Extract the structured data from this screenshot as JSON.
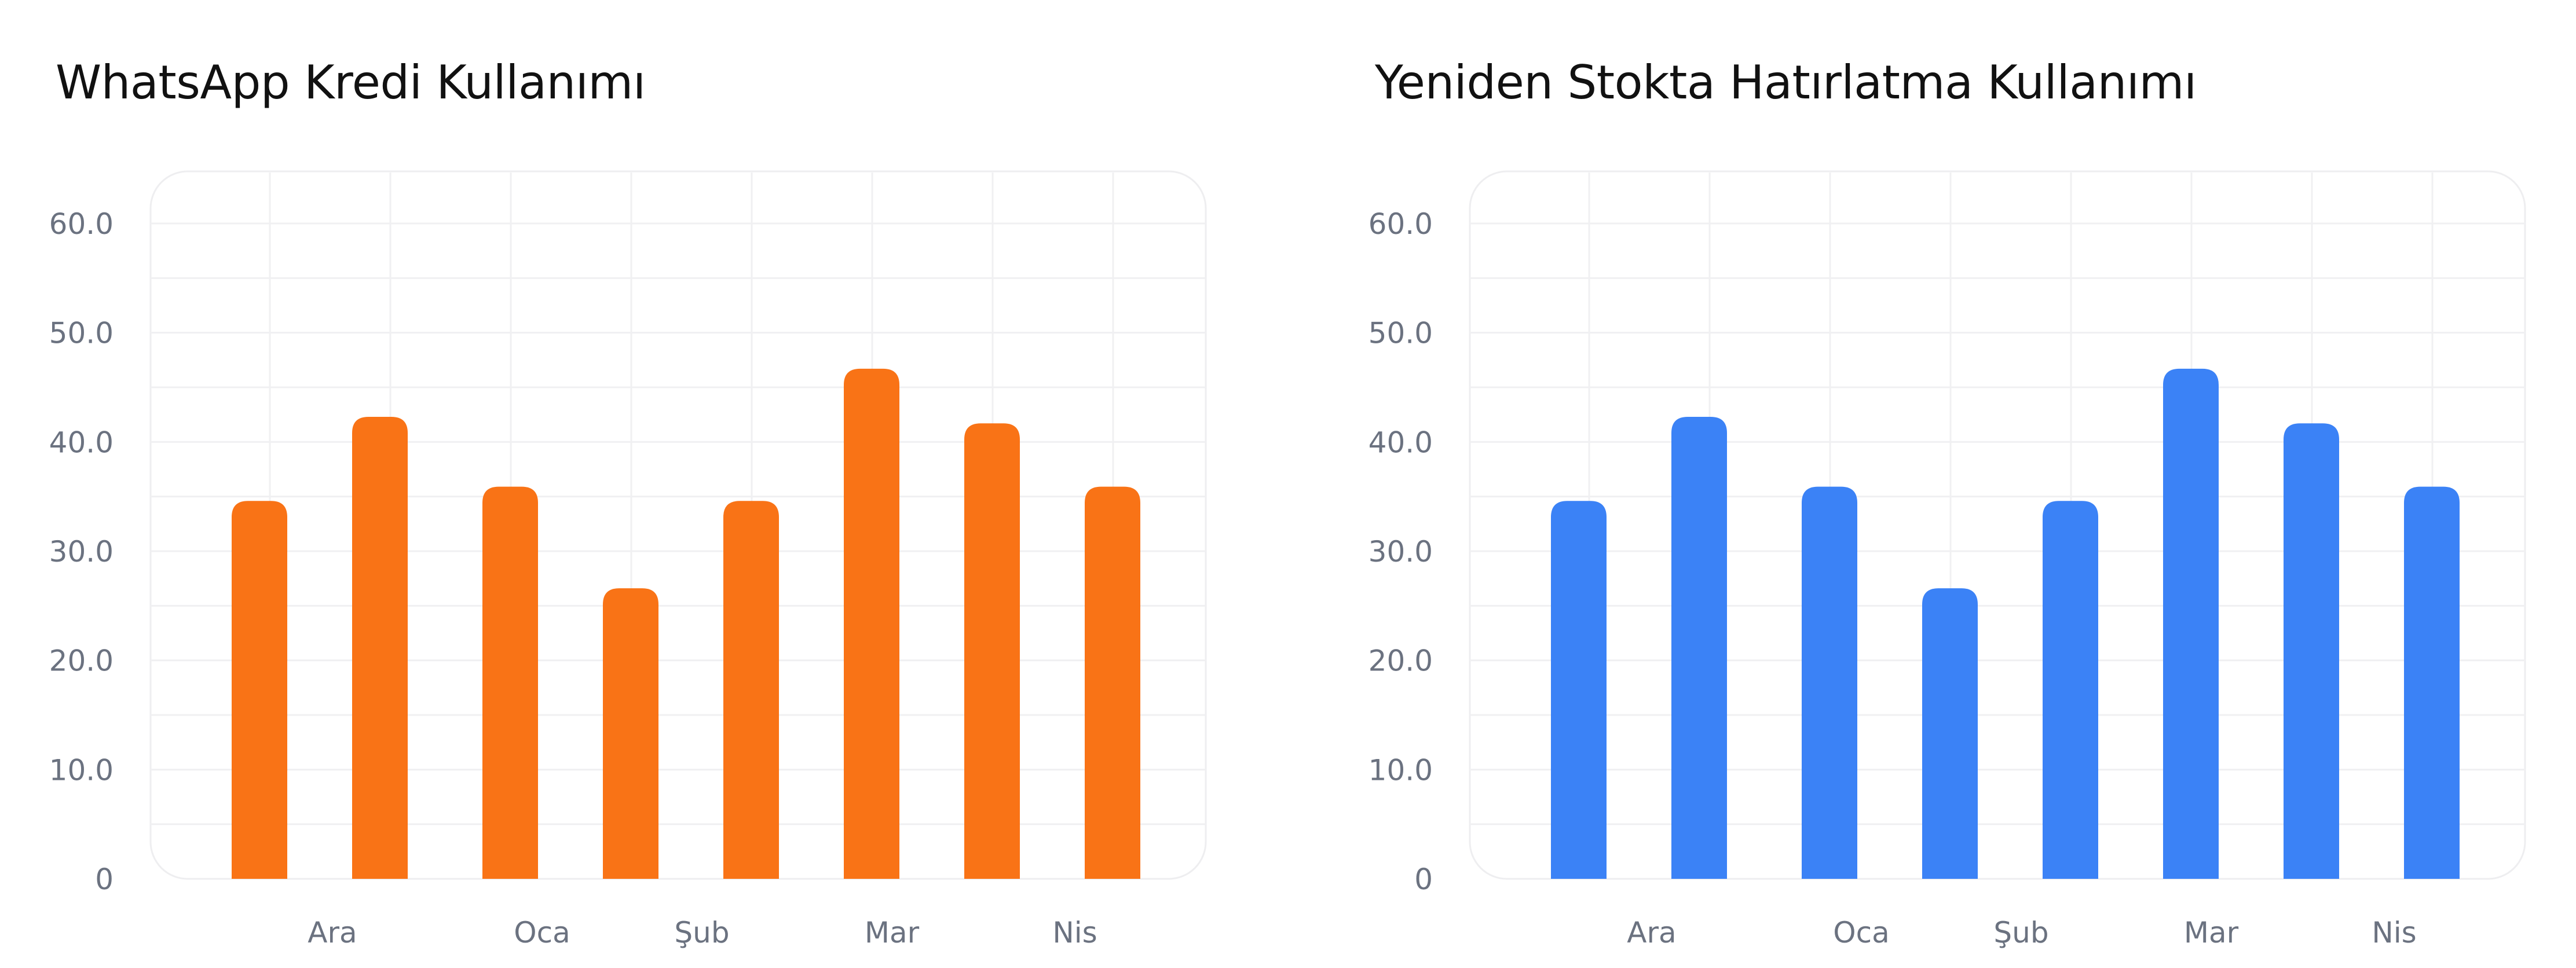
{
  "chart_data": [
    {
      "type": "bar",
      "title": "WhatsApp Kredi Kullanımı",
      "xlabel": "",
      "ylabel": "",
      "ylim": [
        0,
        63
      ],
      "yticks": [
        "0",
        "10.0",
        "20.0",
        "30.0",
        "40.0",
        "50.0",
        "60.0"
      ],
      "xtick_labels": [
        "Ara",
        "Oca",
        "Şub",
        "Mar",
        "Nis"
      ],
      "values": [
        34.6,
        42.3,
        35.9,
        26.6,
        34.6,
        46.7,
        41.7,
        35.9
      ],
      "bar_color": "#F97316",
      "grid": true
    },
    {
      "type": "bar",
      "title": "Yeniden Stokta Hatırlatma Kullanımı",
      "xlabel": "",
      "ylabel": "",
      "ylim": [
        0,
        63
      ],
      "yticks": [
        "0",
        "10.0",
        "20.0",
        "30.0",
        "40.0",
        "50.0",
        "60.0"
      ],
      "xtick_labels": [
        "Ara",
        "Oca",
        "Şub",
        "Mar",
        "Nis"
      ],
      "values": [
        34.6,
        42.3,
        35.9,
        26.6,
        34.6,
        46.7,
        41.7,
        35.9
      ],
      "bar_color": "#3B82F6",
      "grid": true
    }
  ]
}
